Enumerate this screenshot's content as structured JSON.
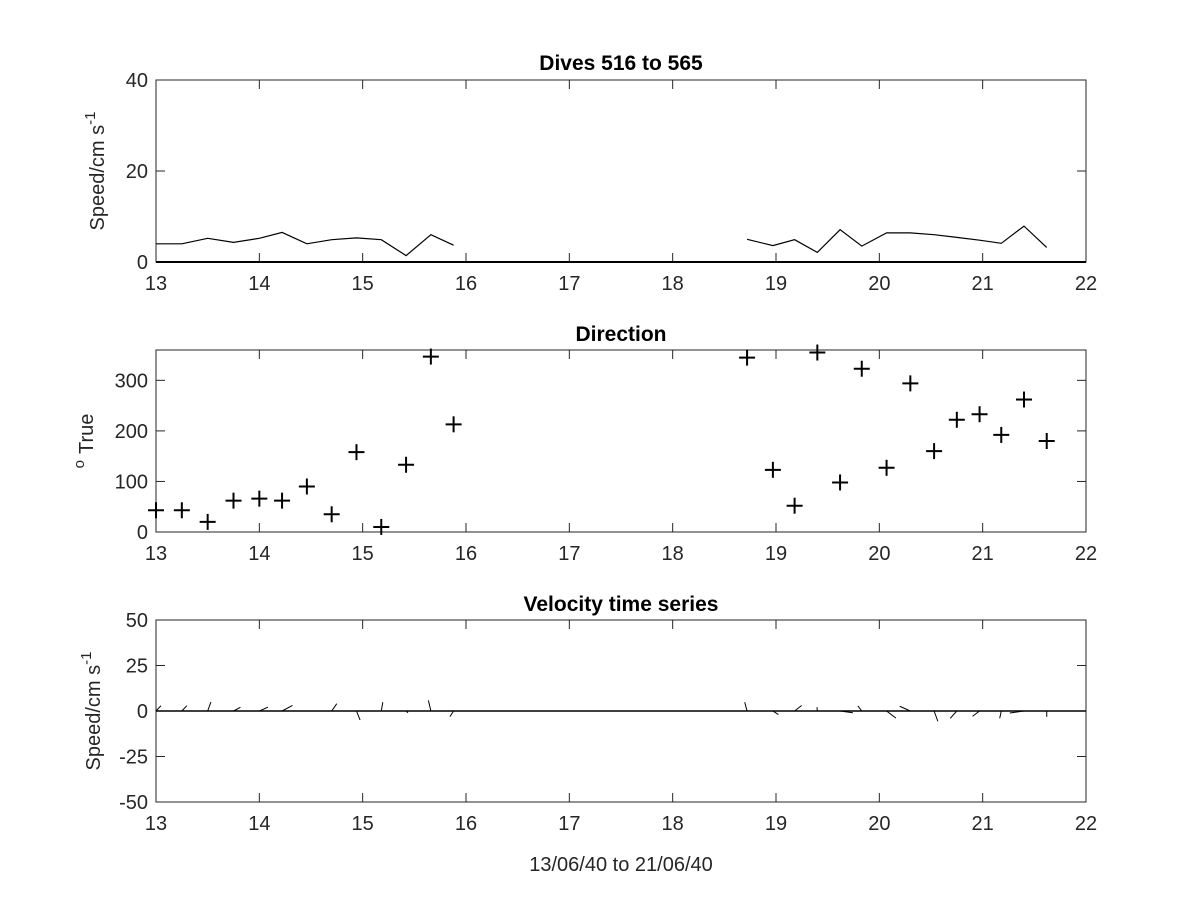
{
  "chart_data": [
    {
      "type": "line",
      "title": "Dives 516 to 565",
      "xlabel": "",
      "ylabel": "Speed/cm s",
      "ylabel_superscript": "-1",
      "xlim": [
        13,
        22
      ],
      "ylim": [
        0,
        40
      ],
      "xticks": [
        13,
        14,
        15,
        16,
        17,
        18,
        19,
        20,
        21,
        22
      ],
      "yticks": [
        0,
        20,
        40
      ],
      "grid": false,
      "series": [
        {
          "color": "#000000",
          "segments": [
            {
              "x": [
                13.0,
                13.25,
                13.5,
                13.75,
                14.0,
                14.22,
                14.46,
                14.7,
                14.94,
                15.18,
                15.42,
                15.66,
                15.88
              ],
              "y": [
                4.0,
                4.0,
                5.2,
                4.3,
                5.2,
                6.5,
                4.0,
                4.9,
                5.3,
                4.9,
                1.4,
                6.0,
                3.7
              ]
            },
            {
              "x": [
                18.72,
                18.97,
                19.18,
                19.4,
                19.62,
                19.83,
                20.07,
                20.3,
                20.53,
                20.75,
                20.97,
                21.18,
                21.4,
                21.62
              ],
              "y": [
                5.0,
                3.6,
                4.9,
                2.1,
                7.1,
                3.5,
                6.4,
                6.4,
                6.0,
                5.4,
                4.8,
                4.1,
                7.9,
                3.2
              ]
            }
          ]
        }
      ],
      "zero_line": true
    },
    {
      "type": "scatter",
      "title": "Direction",
      "xlabel": "",
      "ylabel": "True",
      "ylabel_prefix_superscript": "o",
      "xlim": [
        13,
        22
      ],
      "ylim": [
        0,
        360
      ],
      "xticks": [
        13,
        14,
        15,
        16,
        17,
        18,
        19,
        20,
        21,
        22
      ],
      "yticks": [
        0,
        100,
        200,
        300
      ],
      "grid": false,
      "marker": "+",
      "series": [
        {
          "color": "#000000",
          "x": [
            13.0,
            13.25,
            13.5,
            13.75,
            14.0,
            14.22,
            14.46,
            14.7,
            14.94,
            15.18,
            15.42,
            15.66,
            15.88,
            18.72,
            18.97,
            19.18,
            19.4,
            19.62,
            19.83,
            20.07,
            20.3,
            20.53,
            20.75,
            20.97,
            21.18,
            21.4,
            21.62
          ],
          "y": [
            43,
            43,
            20,
            62,
            66,
            62,
            90,
            35,
            158,
            10,
            133,
            347,
            213,
            345,
            123,
            52,
            355,
            98,
            323,
            127,
            294,
            160,
            222,
            233,
            192,
            262,
            180
          ]
        }
      ]
    },
    {
      "type": "quiver",
      "title": "Velocity time series",
      "xlabel": "13/06/40 to 21/06/40",
      "ylabel": "Speed/cm s",
      "ylabel_superscript": "-1",
      "xlim": [
        13,
        22
      ],
      "ylim": [
        -50,
        50
      ],
      "xticks": [
        13,
        14,
        15,
        16,
        17,
        18,
        19,
        20,
        21,
        22
      ],
      "yticks": [
        -50,
        -25,
        0,
        25,
        50
      ],
      "grid": false,
      "zero_line": true,
      "series": [
        {
          "color": "#000000",
          "x": [
            13.0,
            13.25,
            13.5,
            13.75,
            14.0,
            14.22,
            14.46,
            14.7,
            14.94,
            15.18,
            15.42,
            15.66,
            15.88,
            18.72,
            18.97,
            19.18,
            19.4,
            19.62,
            19.83,
            20.07,
            20.3,
            20.53,
            20.75,
            20.97,
            21.18,
            21.4,
            21.62
          ],
          "speed": [
            4.0,
            4.0,
            5.2,
            4.3,
            5.2,
            6.5,
            4.0,
            4.9,
            5.3,
            4.9,
            1.4,
            6.0,
            3.7,
            5.0,
            3.6,
            4.9,
            2.1,
            7.1,
            3.5,
            6.4,
            6.4,
            6.0,
            5.4,
            4.8,
            4.1,
            7.9,
            3.2
          ],
          "direction": [
            43,
            43,
            20,
            62,
            66,
            62,
            90,
            35,
            158,
            10,
            133,
            347,
            213,
            345,
            123,
            52,
            355,
            98,
            323,
            127,
            294,
            160,
            222,
            233,
            192,
            262,
            180
          ]
        }
      ]
    }
  ]
}
